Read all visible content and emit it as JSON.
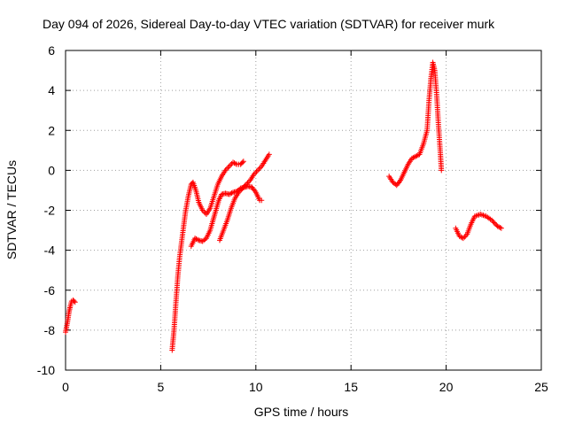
{
  "chart_data": {
    "type": "scatter",
    "title": "Day 094 of 2026, Sidereal Day-to-day VTEC variation (SDTVAR) for receiver murk",
    "xlabel": "GPS time / hours",
    "ylabel": "SDTVAR / TECUs",
    "xlim": [
      0,
      25
    ],
    "ylim": [
      -10,
      6
    ],
    "xticks": [
      "0",
      "5",
      "10",
      "15",
      "20",
      "25"
    ],
    "yticks": [
      "-10",
      "-8",
      "-6",
      "-4",
      "-2",
      "0",
      "2",
      "4",
      "6"
    ],
    "grid": true,
    "marker": "plus",
    "color": "#ff0000",
    "segments": [
      [
        [
          0.0,
          -8.1
        ],
        [
          0.1,
          -7.6
        ],
        [
          0.18,
          -7.1
        ],
        [
          0.25,
          -6.8
        ],
        [
          0.32,
          -6.55
        ],
        [
          0.4,
          -6.5
        ],
        [
          0.5,
          -6.6
        ]
      ],
      [
        [
          5.6,
          -9.0
        ],
        [
          5.7,
          -8.0
        ],
        [
          5.8,
          -6.6
        ],
        [
          5.9,
          -5.3
        ],
        [
          6.0,
          -4.3
        ],
        [
          6.15,
          -3.2
        ],
        [
          6.3,
          -2.1
        ],
        [
          6.45,
          -1.3
        ],
        [
          6.6,
          -0.7
        ],
        [
          6.7,
          -0.6
        ],
        [
          6.85,
          -1.0
        ],
        [
          7.0,
          -1.6
        ],
        [
          7.2,
          -2.0
        ],
        [
          7.4,
          -2.2
        ],
        [
          7.6,
          -1.9
        ],
        [
          7.8,
          -1.3
        ],
        [
          8.0,
          -0.7
        ],
        [
          8.2,
          -0.3
        ],
        [
          8.4,
          0.0
        ],
        [
          8.6,
          0.2
        ],
        [
          8.8,
          0.4
        ],
        [
          9.0,
          0.3
        ],
        [
          9.2,
          0.3
        ],
        [
          9.35,
          0.45
        ]
      ],
      [
        [
          6.6,
          -3.8
        ],
        [
          6.8,
          -3.4
        ],
        [
          7.0,
          -3.5
        ],
        [
          7.2,
          -3.55
        ],
        [
          7.4,
          -3.4
        ],
        [
          7.6,
          -3.0
        ],
        [
          7.75,
          -2.5
        ],
        [
          7.9,
          -2.0
        ],
        [
          8.05,
          -1.5
        ],
        [
          8.2,
          -1.2
        ],
        [
          8.4,
          -1.15
        ],
        [
          8.6,
          -1.2
        ],
        [
          8.8,
          -1.1
        ],
        [
          9.0,
          -1.05
        ],
        [
          9.2,
          -0.9
        ],
        [
          9.4,
          -0.85
        ],
        [
          9.6,
          -0.8
        ],
        [
          9.8,
          -0.85
        ],
        [
          10.0,
          -1.1
        ],
        [
          10.2,
          -1.5
        ],
        [
          10.3,
          -1.5
        ]
      ],
      [
        [
          8.1,
          -3.5
        ],
        [
          8.3,
          -3.0
        ],
        [
          8.5,
          -2.5
        ],
        [
          8.7,
          -1.9
        ],
        [
          8.9,
          -1.4
        ],
        [
          9.1,
          -1.1
        ],
        [
          9.3,
          -0.9
        ],
        [
          9.5,
          -0.7
        ],
        [
          9.7,
          -0.5
        ],
        [
          9.9,
          -0.2
        ],
        [
          10.1,
          0.0
        ],
        [
          10.3,
          0.2
        ],
        [
          10.5,
          0.5
        ],
        [
          10.7,
          0.8
        ]
      ],
      [
        [
          17.0,
          -0.3
        ],
        [
          17.2,
          -0.6
        ],
        [
          17.4,
          -0.75
        ],
        [
          17.6,
          -0.5
        ],
        [
          17.8,
          -0.1
        ],
        [
          18.0,
          0.3
        ],
        [
          18.2,
          0.6
        ],
        [
          18.4,
          0.7
        ],
        [
          18.6,
          0.8
        ],
        [
          18.8,
          1.3
        ],
        [
          19.0,
          2.0
        ],
        [
          19.1,
          3.5
        ],
        [
          19.2,
          4.6
        ],
        [
          19.3,
          5.4
        ],
        [
          19.4,
          5.0
        ],
        [
          19.5,
          3.8
        ],
        [
          19.6,
          2.2
        ],
        [
          19.7,
          0.8
        ],
        [
          19.75,
          0.0
        ]
      ],
      [
        [
          20.5,
          -2.9
        ],
        [
          20.7,
          -3.3
        ],
        [
          20.9,
          -3.4
        ],
        [
          21.1,
          -3.2
        ],
        [
          21.3,
          -2.7
        ],
        [
          21.5,
          -2.3
        ],
        [
          21.8,
          -2.2
        ],
        [
          22.1,
          -2.3
        ],
        [
          22.4,
          -2.5
        ],
        [
          22.7,
          -2.8
        ],
        [
          22.9,
          -2.9
        ]
      ]
    ]
  }
}
